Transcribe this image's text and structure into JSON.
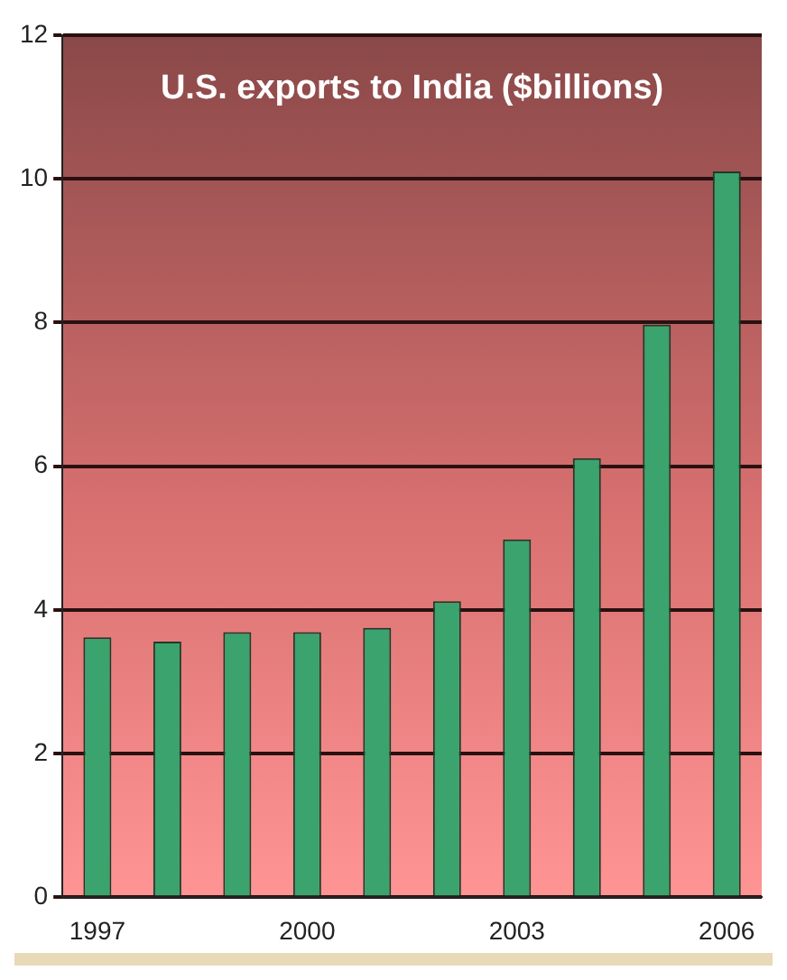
{
  "chart_data": {
    "type": "bar",
    "title": "U.S. exports to India ($billions)",
    "categories": [
      "1997",
      null,
      null,
      "2000",
      null,
      null,
      "2003",
      null,
      null,
      "2006"
    ],
    "values": [
      3.62,
      3.56,
      3.69,
      3.69,
      3.75,
      4.12,
      4.98,
      6.11,
      7.97,
      10.1
    ],
    "color": "#3aa36e",
    "ylim": [
      0,
      12
    ],
    "yticks": [
      0,
      2,
      4,
      6,
      8,
      10,
      12
    ],
    "grid": "y",
    "legend": false
  }
}
